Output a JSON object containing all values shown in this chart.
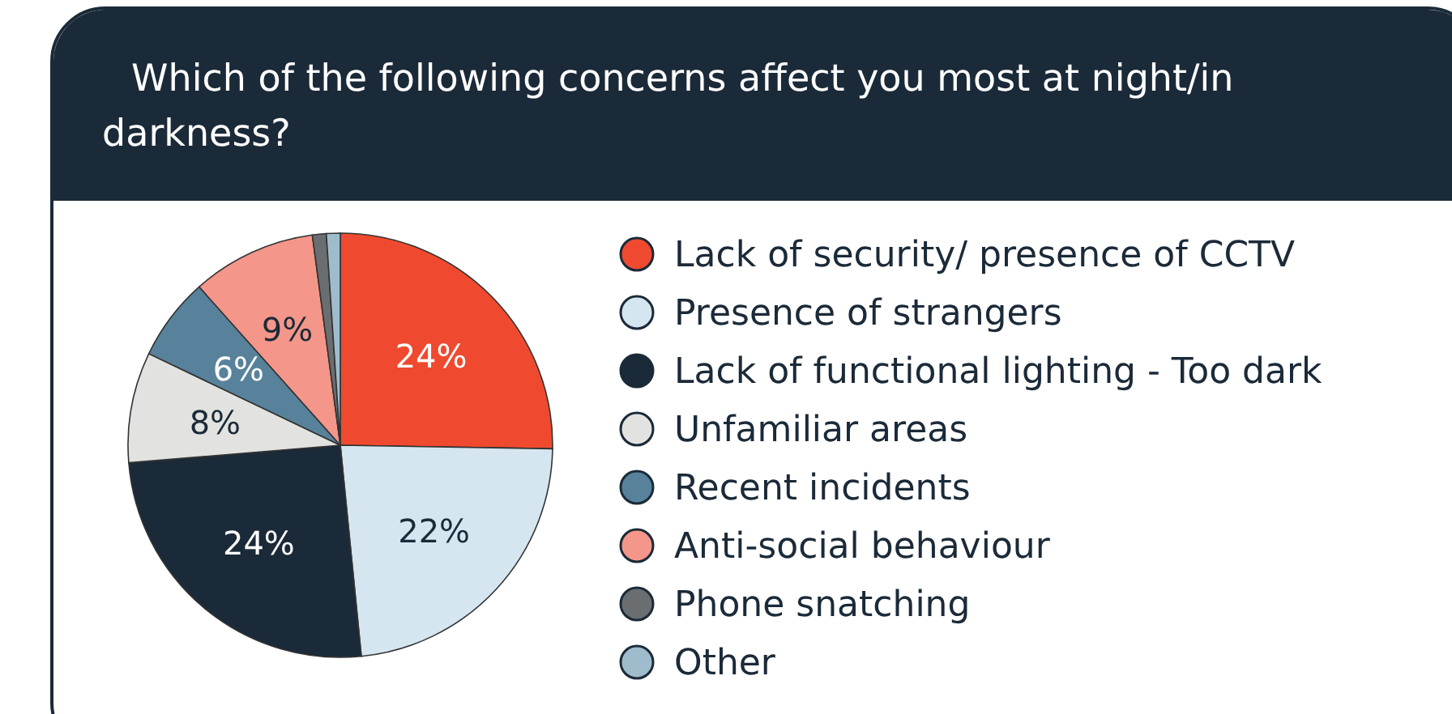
{
  "chart_data": {
    "type": "pie",
    "title": "Which of the following concerns affect you most at night/in darkness?",
    "categories": [
      "Lack of security/ presence of CCTV",
      "Presence of strangers",
      "Lack of functional lighting - Too dark",
      "Unfamiliar areas",
      "Recent incidents",
      "Anti-social behaviour",
      "Phone snatching",
      "Other"
    ],
    "values": [
      24,
      22,
      24,
      8,
      6,
      9,
      1,
      1
    ],
    "value_labels": [
      "24%",
      "22%",
      "24%",
      "8%",
      "6%",
      "9%",
      null,
      null
    ],
    "colors": [
      "#ef4a2f",
      "#d6e6f0",
      "#1b2a38",
      "#e2e3e0",
      "#58829b",
      "#f4968a",
      "#6b6e70",
      "#9fbccc"
    ],
    "legend": "right"
  }
}
